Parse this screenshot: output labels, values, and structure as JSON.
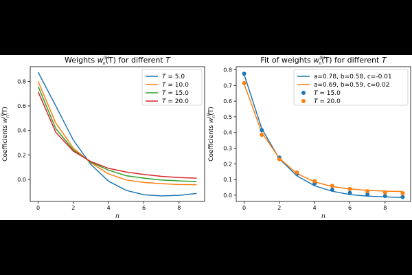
{
  "chart_data": [
    {
      "type": "line",
      "title_prefix": "Weights ",
      "title_w": "w",
      "title_sub": "n",
      "title_sup": "(F)",
      "title_arg": "(T)",
      "title_suffix": " for different ",
      "title_var": "T",
      "xlabel": "n",
      "ylabel_prefix": "Coefficients ",
      "xlim": [
        -0.45,
        9.45
      ],
      "ylim": [
        -0.18,
        0.92
      ],
      "xticks": [
        0,
        2,
        4,
        6,
        8
      ],
      "yticks": [
        "0.0",
        "0.2",
        "0.4",
        "0.6",
        "0.8"
      ],
      "ytick_values": [
        0.0,
        0.2,
        0.4,
        0.6,
        0.8
      ],
      "x": [
        0,
        1,
        2,
        3,
        4,
        5,
        6,
        7,
        8,
        9
      ],
      "series": [
        {
          "name": "5.0",
          "var": "T",
          "eq": " = ",
          "color": "#1f77b4",
          "values": [
            0.875,
            0.6,
            0.32,
            0.12,
            -0.015,
            -0.09,
            -0.125,
            -0.135,
            -0.13,
            -0.115
          ]
        },
        {
          "name": "10.0",
          "var": "T",
          "eq": " = ",
          "color": "#ff7f0e",
          "values": [
            0.8,
            0.46,
            0.255,
            0.135,
            0.045,
            -0.005,
            -0.025,
            -0.035,
            -0.042,
            -0.043
          ]
        },
        {
          "name": "15.0",
          "var": "T",
          "eq": " = ",
          "color": "#2ca02c",
          "values": [
            0.76,
            0.415,
            0.24,
            0.14,
            0.075,
            0.03,
            0.01,
            -0.005,
            -0.012,
            -0.018
          ]
        },
        {
          "name": "20.0",
          "var": "T",
          "eq": " = ",
          "color": "#d62728",
          "values": [
            0.715,
            0.385,
            0.23,
            0.145,
            0.09,
            0.06,
            0.04,
            0.025,
            0.015,
            0.01
          ]
        }
      ],
      "legend": "top-right"
    },
    {
      "type": "line+scatter",
      "title_prefix": "Fit of weights ",
      "title_w": "w",
      "title_sub": "n",
      "title_sup": "(F)",
      "title_arg": "(T)",
      "title_suffix": " for different ",
      "title_var": "T",
      "xlabel": "n",
      "ylabel_prefix": "Coefficients ",
      "xlim": [
        -0.45,
        9.45
      ],
      "ylim": [
        -0.04,
        0.82
      ],
      "xticks": [
        0,
        2,
        4,
        6,
        8
      ],
      "yticks": [
        "0.0",
        "0.1",
        "0.2",
        "0.3",
        "0.4",
        "0.5",
        "0.6",
        "0.7",
        "0.8"
      ],
      "ytick_values": [
        0.0,
        0.1,
        0.2,
        0.3,
        0.4,
        0.5,
        0.6,
        0.7,
        0.8
      ],
      "x": [
        0,
        1,
        2,
        3,
        4,
        5,
        6,
        7,
        8,
        9
      ],
      "fits": [
        {
          "name": "a=0.78, b=0.58, c=-0.01",
          "color": "#1f77b4",
          "values": [
            0.77,
            0.425,
            0.232,
            0.123,
            0.06,
            0.025,
            0.004,
            -0.006,
            -0.011,
            -0.015
          ]
        },
        {
          "name": "a=0.69, b=0.59, c=0.02",
          "color": "#ff7f0e",
          "values": [
            0.71,
            0.4,
            0.235,
            0.138,
            0.085,
            0.055,
            0.04,
            0.031,
            0.026,
            0.023
          ]
        }
      ],
      "points": [
        {
          "name": "15.0",
          "var": "T",
          "eq": " = ",
          "color": "#1f77b4",
          "values": [
            0.775,
            0.415,
            0.24,
            0.135,
            0.075,
            0.035,
            0.015,
            0.005,
            -0.005,
            -0.012
          ]
        },
        {
          "name": "20.0",
          "var": "T",
          "eq": " = ",
          "color": "#ff7f0e",
          "values": [
            0.715,
            0.385,
            0.23,
            0.145,
            0.09,
            0.06,
            0.04,
            0.025,
            0.018,
            0.012
          ]
        }
      ],
      "legend": "top-right"
    }
  ]
}
